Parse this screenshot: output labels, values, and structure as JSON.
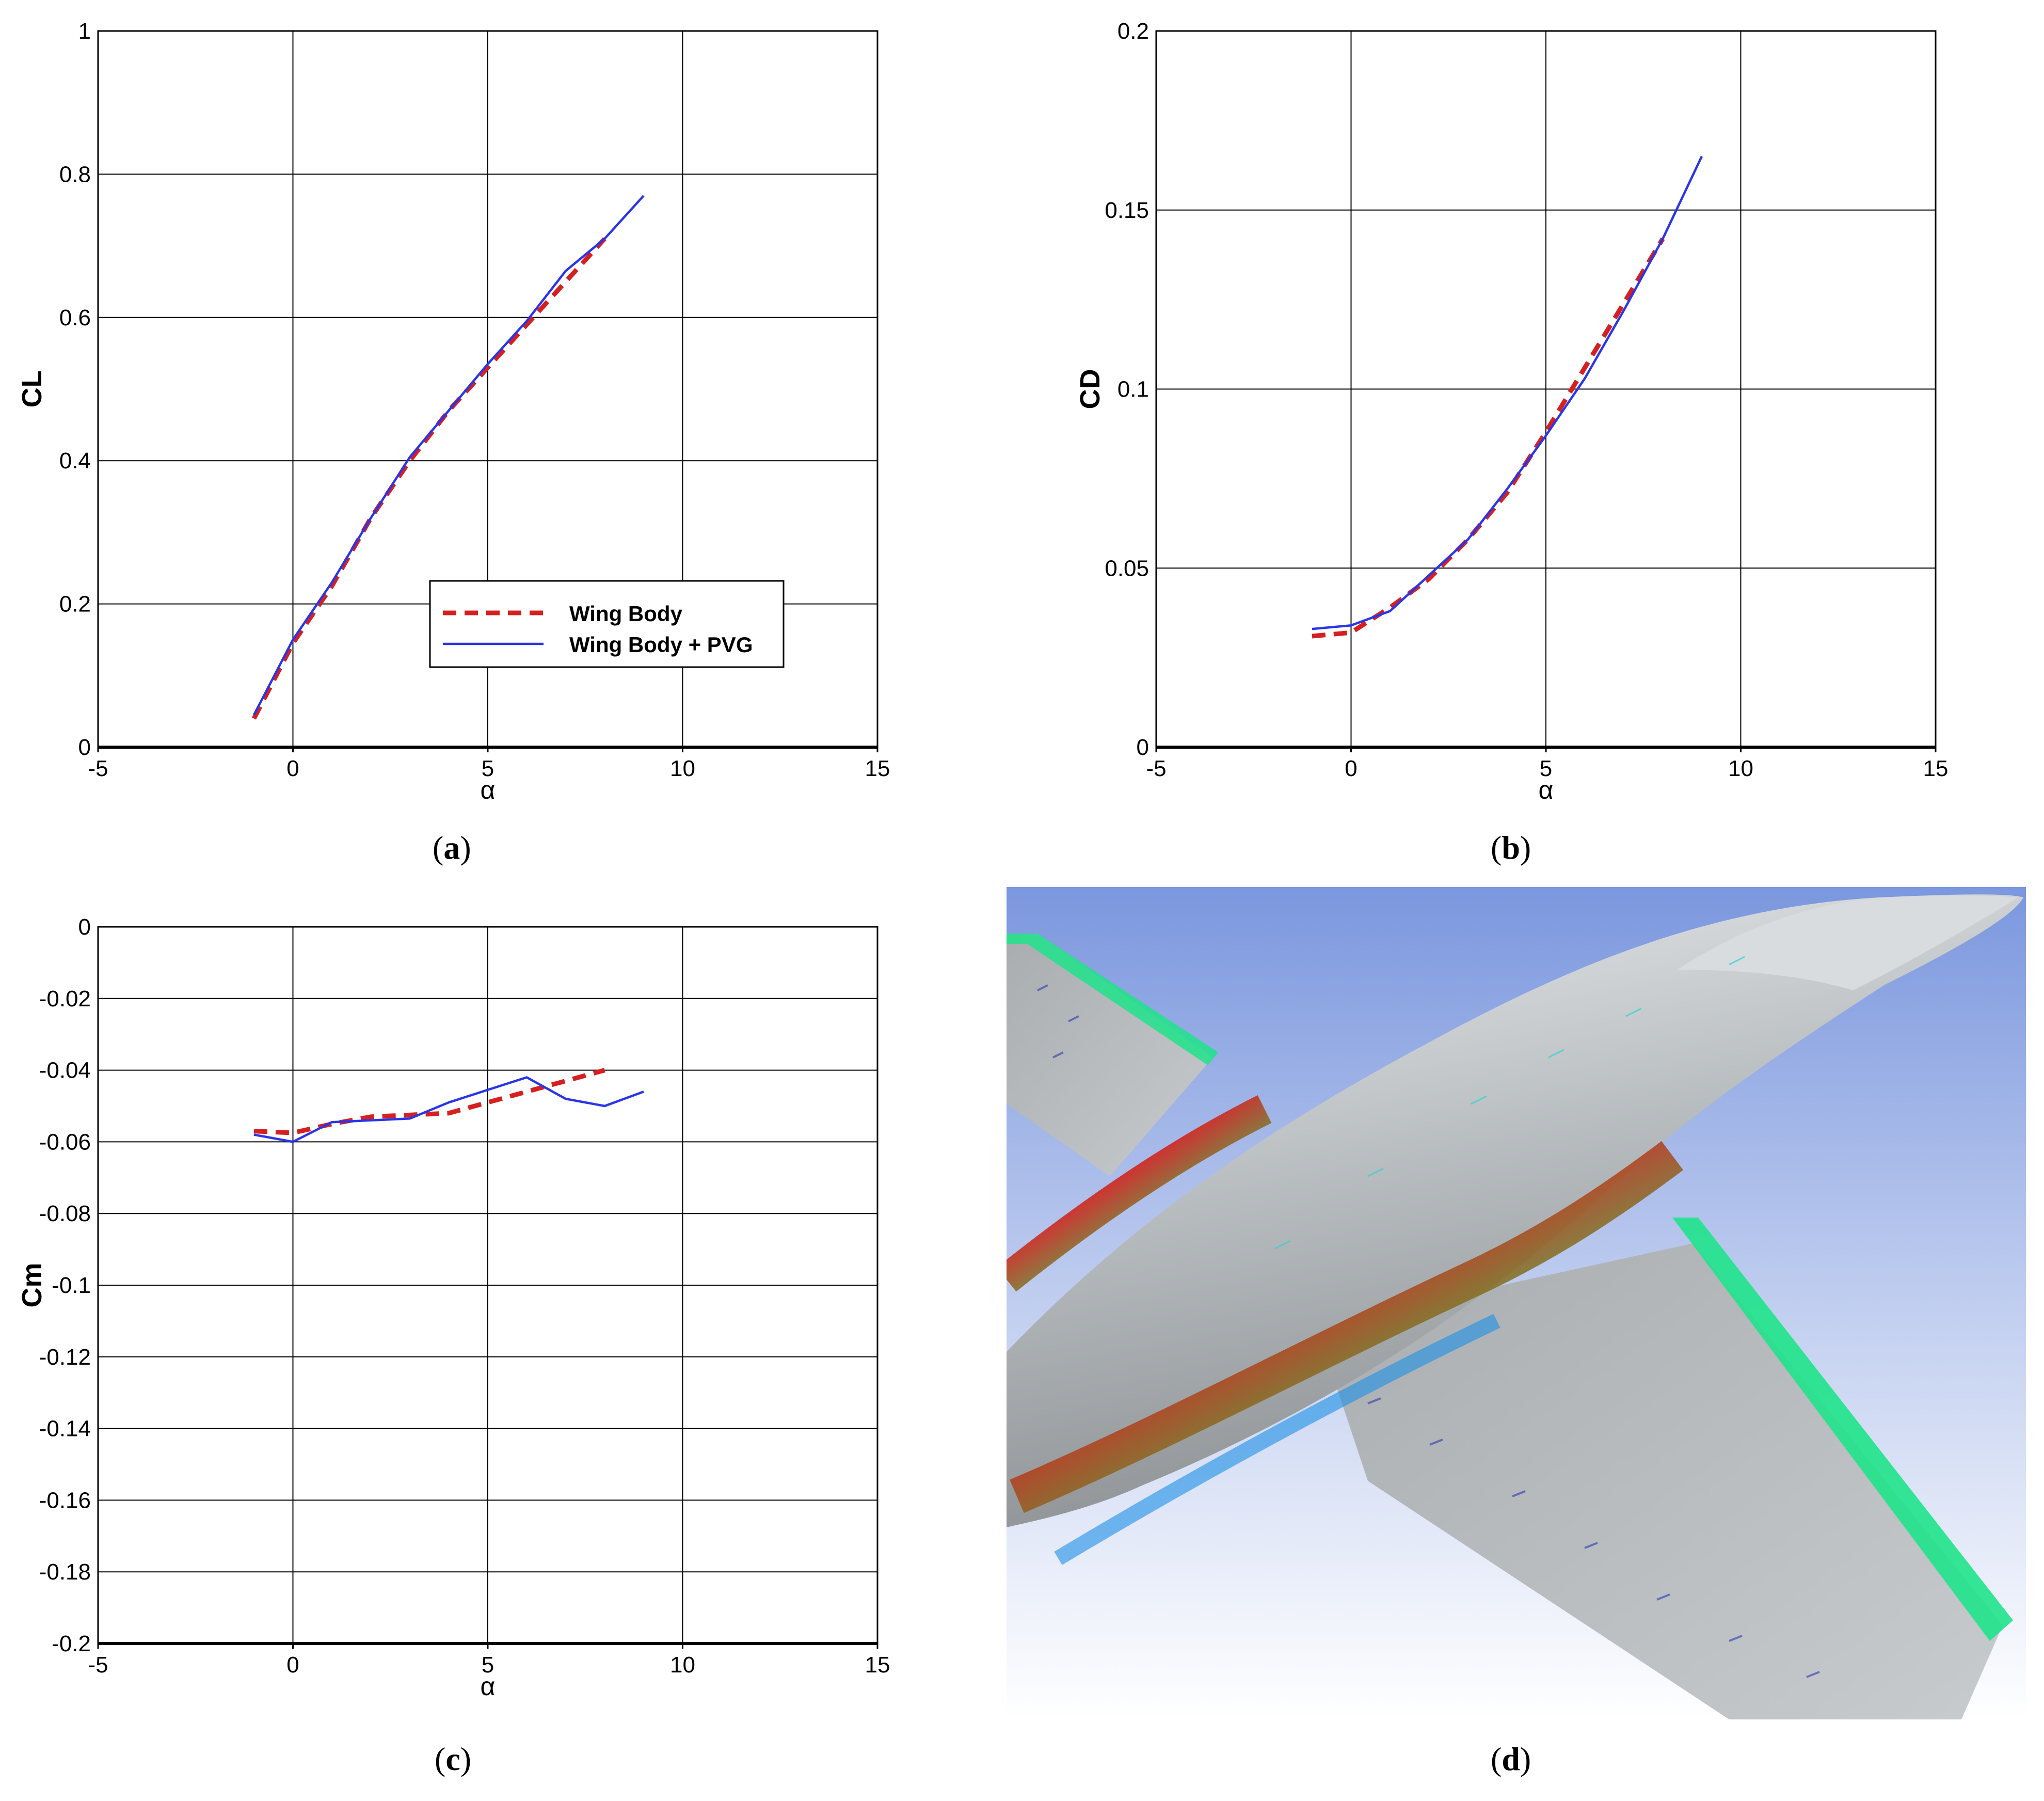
{
  "colors": {
    "wing_body": "#d62020",
    "wing_body_pvg": "#2a35e8",
    "grid": "#000000",
    "sky_top": "#7b97de",
    "sky_bottom": "#ffffff"
  },
  "legend": {
    "wing_body": "Wing Body",
    "wing_body_pvg": "Wing Body + PVG"
  },
  "captions": {
    "a": "a",
    "b": "b",
    "c": "c",
    "d": "d"
  },
  "chart_data": [
    {
      "id": "a",
      "type": "line",
      "xlabel": "α",
      "ylabel": "CL",
      "xlim": [
        -5,
        15
      ],
      "ylim": [
        0,
        1
      ],
      "xticks": [
        "-5",
        "0",
        "5",
        "10",
        "15"
      ],
      "yticks": [
        "0",
        "0.2",
        "0.4",
        "0.6",
        "0.8",
        "1"
      ],
      "grid": true,
      "legend": "center-right",
      "series": [
        {
          "name": "Wing Body",
          "style": "dashed",
          "x": [
            -1,
            0,
            1,
            2,
            3,
            4,
            5,
            6,
            7,
            8
          ],
          "y": [
            0.04,
            0.145,
            0.225,
            0.32,
            0.4,
            0.47,
            0.53,
            0.59,
            0.65,
            0.71
          ]
        },
        {
          "name": "Wing Body + PVG",
          "style": "solid",
          "x": [
            -1,
            0,
            1,
            2,
            3,
            4,
            5,
            6,
            7,
            8,
            9
          ],
          "y": [
            0.045,
            0.15,
            0.23,
            0.32,
            0.405,
            0.47,
            0.535,
            0.595,
            0.665,
            0.71,
            0.77
          ]
        }
      ]
    },
    {
      "id": "b",
      "type": "line",
      "xlabel": "α",
      "ylabel": "CD",
      "xlim": [
        -5,
        15
      ],
      "ylim": [
        0,
        0.2
      ],
      "xticks": [
        "-5",
        "0",
        "5",
        "10",
        "15"
      ],
      "yticks": [
        "0",
        "0.05",
        "0.1",
        "0.15",
        "0.2"
      ],
      "grid": true,
      "series": [
        {
          "name": "Wing Body",
          "style": "dashed",
          "x": [
            -1,
            0,
            1,
            2,
            3,
            4,
            5,
            6,
            7,
            8
          ],
          "y": [
            0.031,
            0.032,
            0.039,
            0.047,
            0.058,
            0.071,
            0.088,
            0.106,
            0.124,
            0.142
          ]
        },
        {
          "name": "Wing Body + PVG",
          "style": "solid",
          "x": [
            -1,
            0,
            1,
            2,
            3,
            4,
            5,
            6,
            7,
            8,
            9
          ],
          "y": [
            0.033,
            0.034,
            0.038,
            0.048,
            0.058,
            0.072,
            0.087,
            0.103,
            0.122,
            0.142,
            0.165
          ]
        }
      ]
    },
    {
      "id": "c",
      "type": "line",
      "xlabel": "α",
      "ylabel": "Cm",
      "xlim": [
        -5,
        15
      ],
      "ylim": [
        -0.2,
        0
      ],
      "xticks": [
        "-5",
        "0",
        "5",
        "10",
        "15"
      ],
      "yticks": [
        "-0.2",
        "-0.18",
        "-0.16",
        "-0.14",
        "-0.12",
        "-0.1",
        "-0.08",
        "-0.06",
        "-0.04",
        "-0.02",
        "0"
      ],
      "grid": true,
      "series": [
        {
          "name": "Wing Body",
          "style": "dashed",
          "x": [
            -1,
            0,
            1,
            2,
            3,
            4,
            5,
            6,
            7,
            8
          ],
          "y": [
            -0.057,
            -0.0575,
            -0.055,
            -0.053,
            -0.0525,
            -0.052,
            -0.049,
            -0.046,
            -0.043,
            -0.04
          ]
        },
        {
          "name": "Wing Body + PVG",
          "style": "solid",
          "x": [
            -1,
            0,
            1,
            2,
            3,
            4,
            5,
            6,
            7,
            8,
            9
          ],
          "y": [
            -0.058,
            -0.06,
            -0.0545,
            -0.054,
            -0.0535,
            -0.049,
            -0.0455,
            -0.042,
            -0.048,
            -0.05,
            -0.046
          ]
        }
      ]
    }
  ]
}
